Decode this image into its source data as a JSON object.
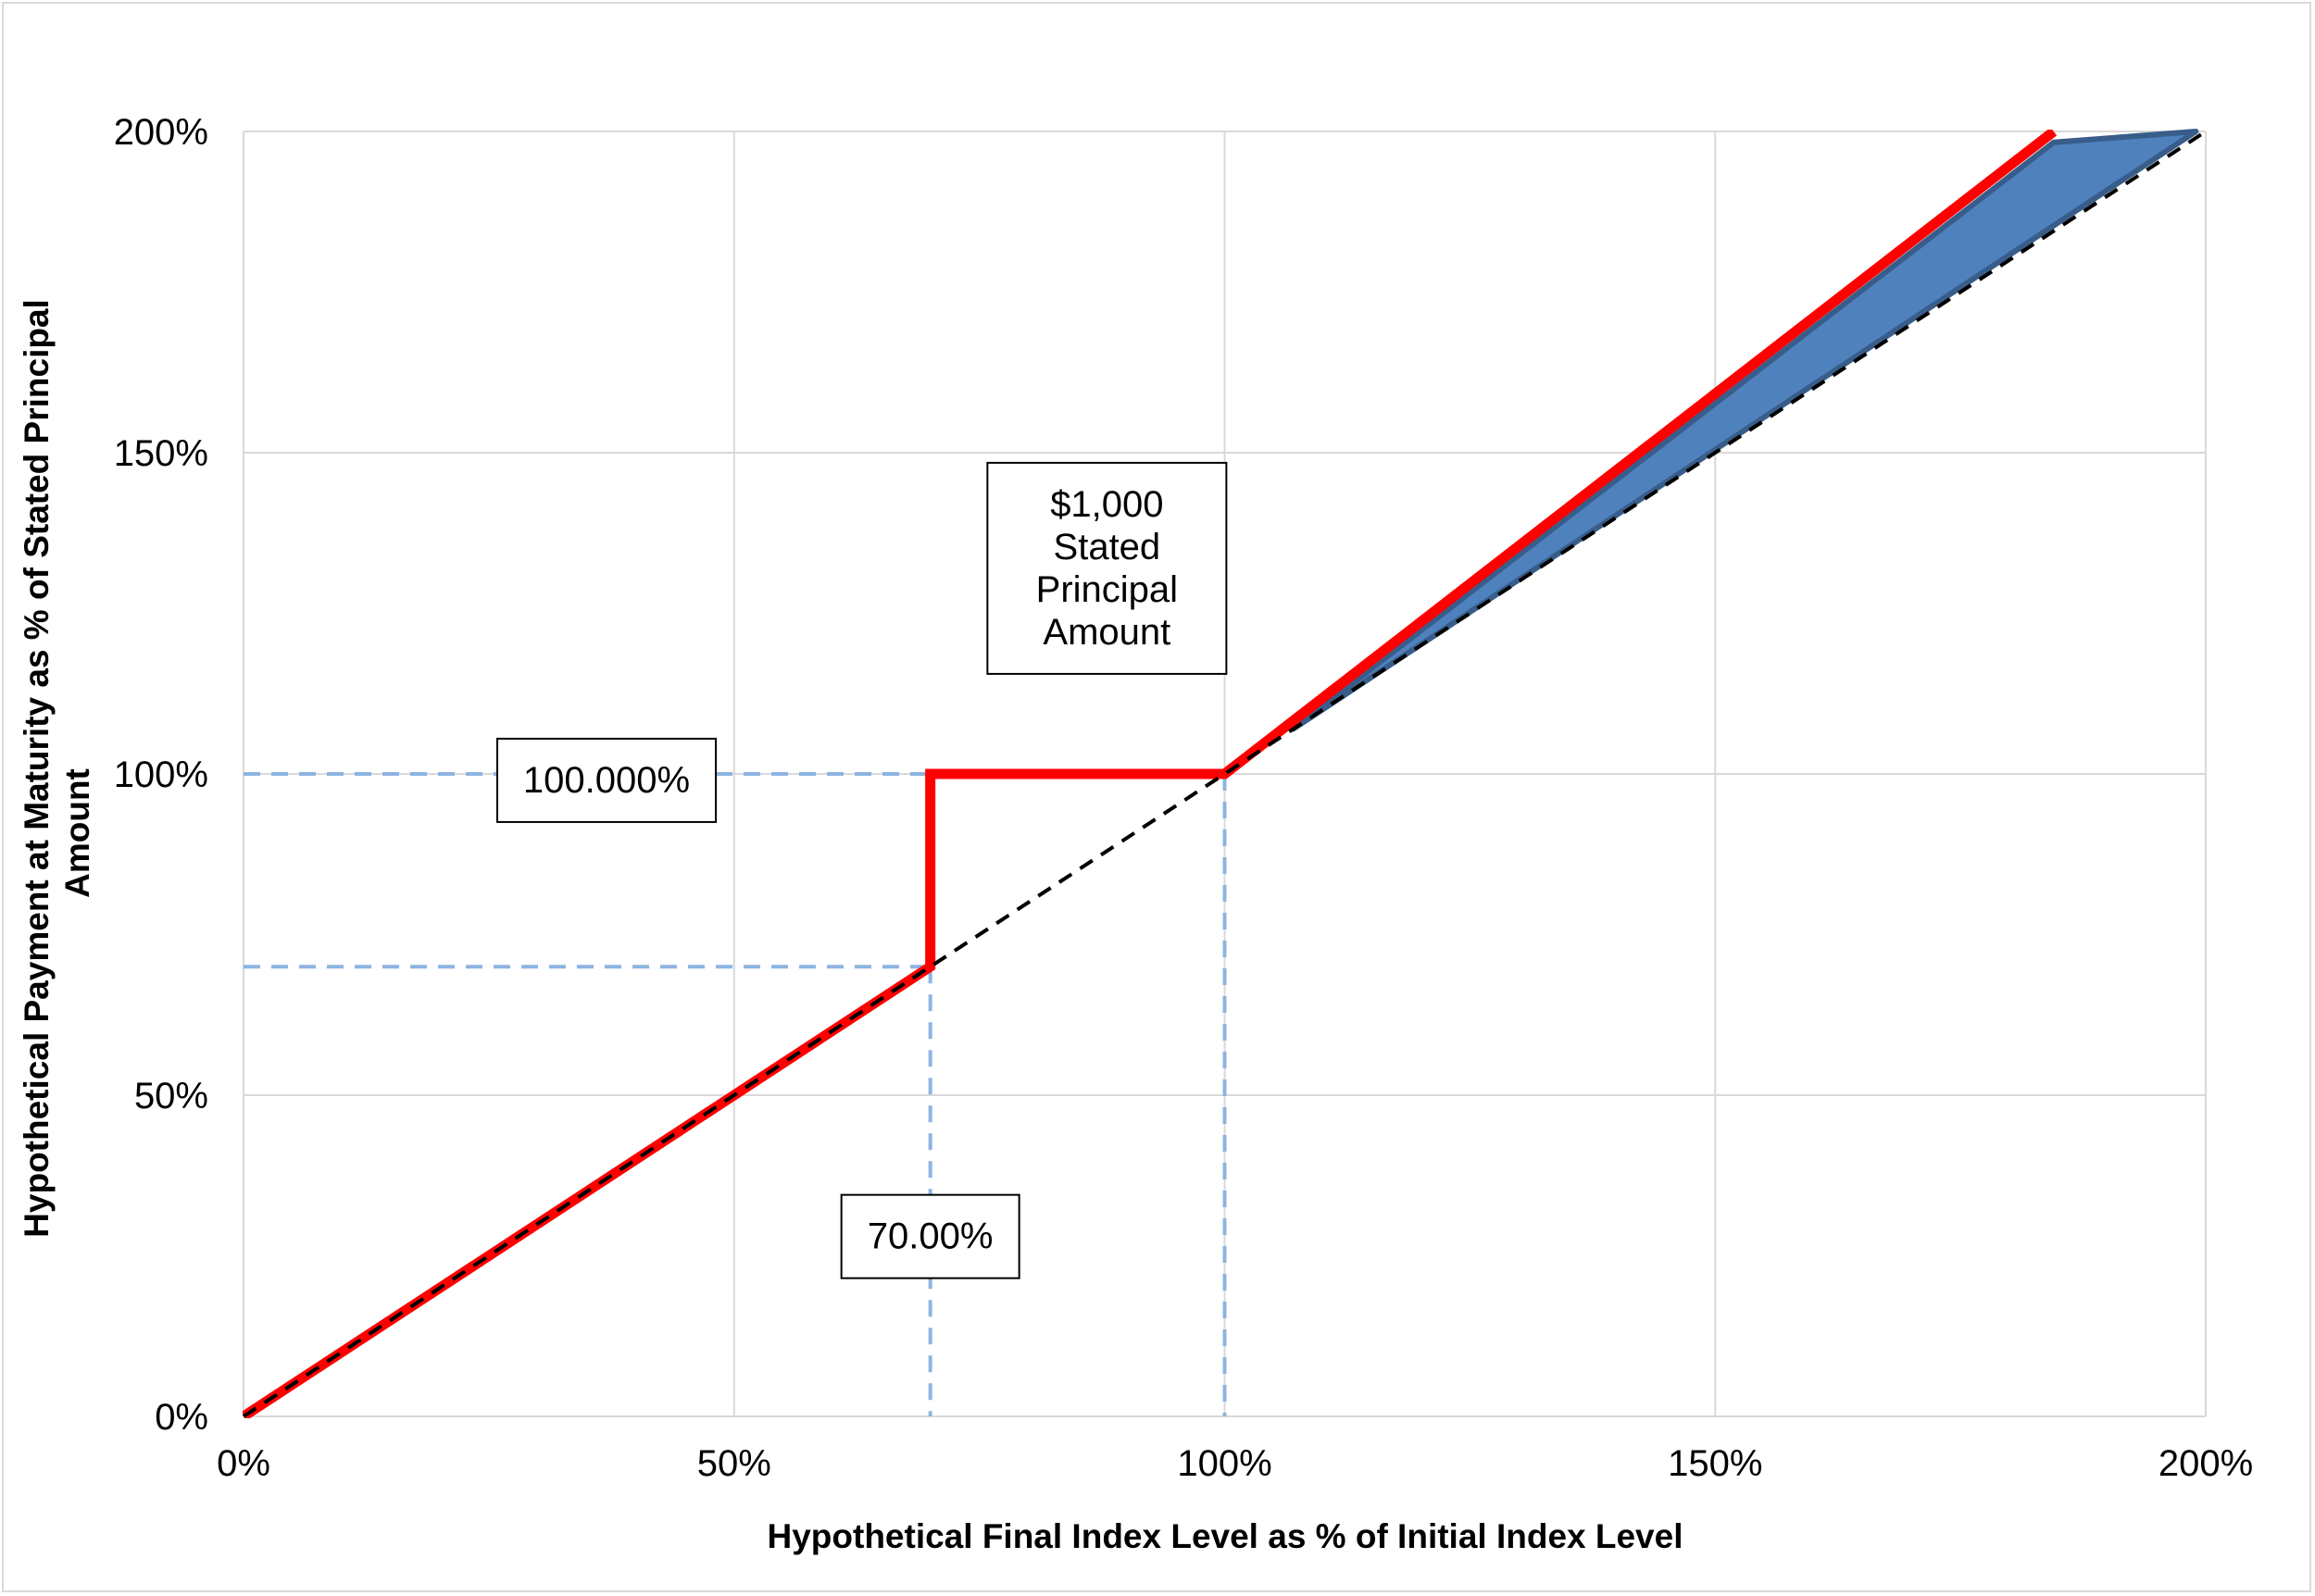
{
  "chart_data": {
    "type": "line",
    "xlabel": "Hypothetical Final Index Level as % of Initial Index Level",
    "ylabel_lines": [
      "Hypothetical Payment at Maturity as % of Stated Principal",
      "Amount"
    ],
    "xlim": [
      0,
      200
    ],
    "ylim": [
      0,
      200
    ],
    "x_ticks": [
      0,
      50,
      100,
      150,
      200
    ],
    "y_ticks": [
      0,
      50,
      100,
      150,
      200
    ],
    "x_tick_labels": [
      "0%",
      "50%",
      "100%",
      "150%",
      "200%"
    ],
    "y_tick_labels": [
      "0%",
      "50%",
      "100%",
      "150%",
      "200%"
    ],
    "grid": true,
    "legend": "none",
    "series": [
      {
        "role": "payment-at-maturity",
        "color": "#ff0000",
        "style": "solid",
        "points": [
          [
            0,
            0
          ],
          [
            70,
            70
          ],
          [
            70,
            100
          ],
          [
            100,
            100
          ],
          [
            184.5,
            200
          ]
        ]
      },
      {
        "role": "index-return",
        "color": "#000000",
        "style": "dashed",
        "points": [
          [
            0,
            0
          ],
          [
            200,
            200
          ]
        ]
      }
    ],
    "shaded_area": {
      "color": "#4f81bd",
      "edge_color": "#385d8a",
      "polygon": [
        [
          107,
          107
        ],
        [
          184.5,
          198.3
        ],
        [
          199,
          200
        ],
        [
          107,
          107
        ]
      ]
    },
    "reference_lines": {
      "color": "#8db4e2",
      "style": "dashed",
      "segments": [
        [
          [
            0,
            100
          ],
          [
            70,
            100
          ]
        ],
        [
          [
            0,
            70
          ],
          [
            70,
            70
          ]
        ],
        [
          [
            70,
            70
          ],
          [
            70,
            0
          ]
        ],
        [
          [
            100,
            100
          ],
          [
            100,
            0
          ]
        ]
      ]
    },
    "annotations": [
      {
        "name": "principal-box",
        "lines": [
          "$1,000",
          "Stated",
          "Principal",
          "Amount"
        ],
        "x": 88,
        "y": 132
      },
      {
        "name": "cap-box",
        "lines": [
          "100.000%"
        ],
        "x": 37,
        "y": 99
      },
      {
        "name": "barrier-box",
        "lines": [
          "70.00%"
        ],
        "x": 70,
        "y": 28
      }
    ]
  }
}
